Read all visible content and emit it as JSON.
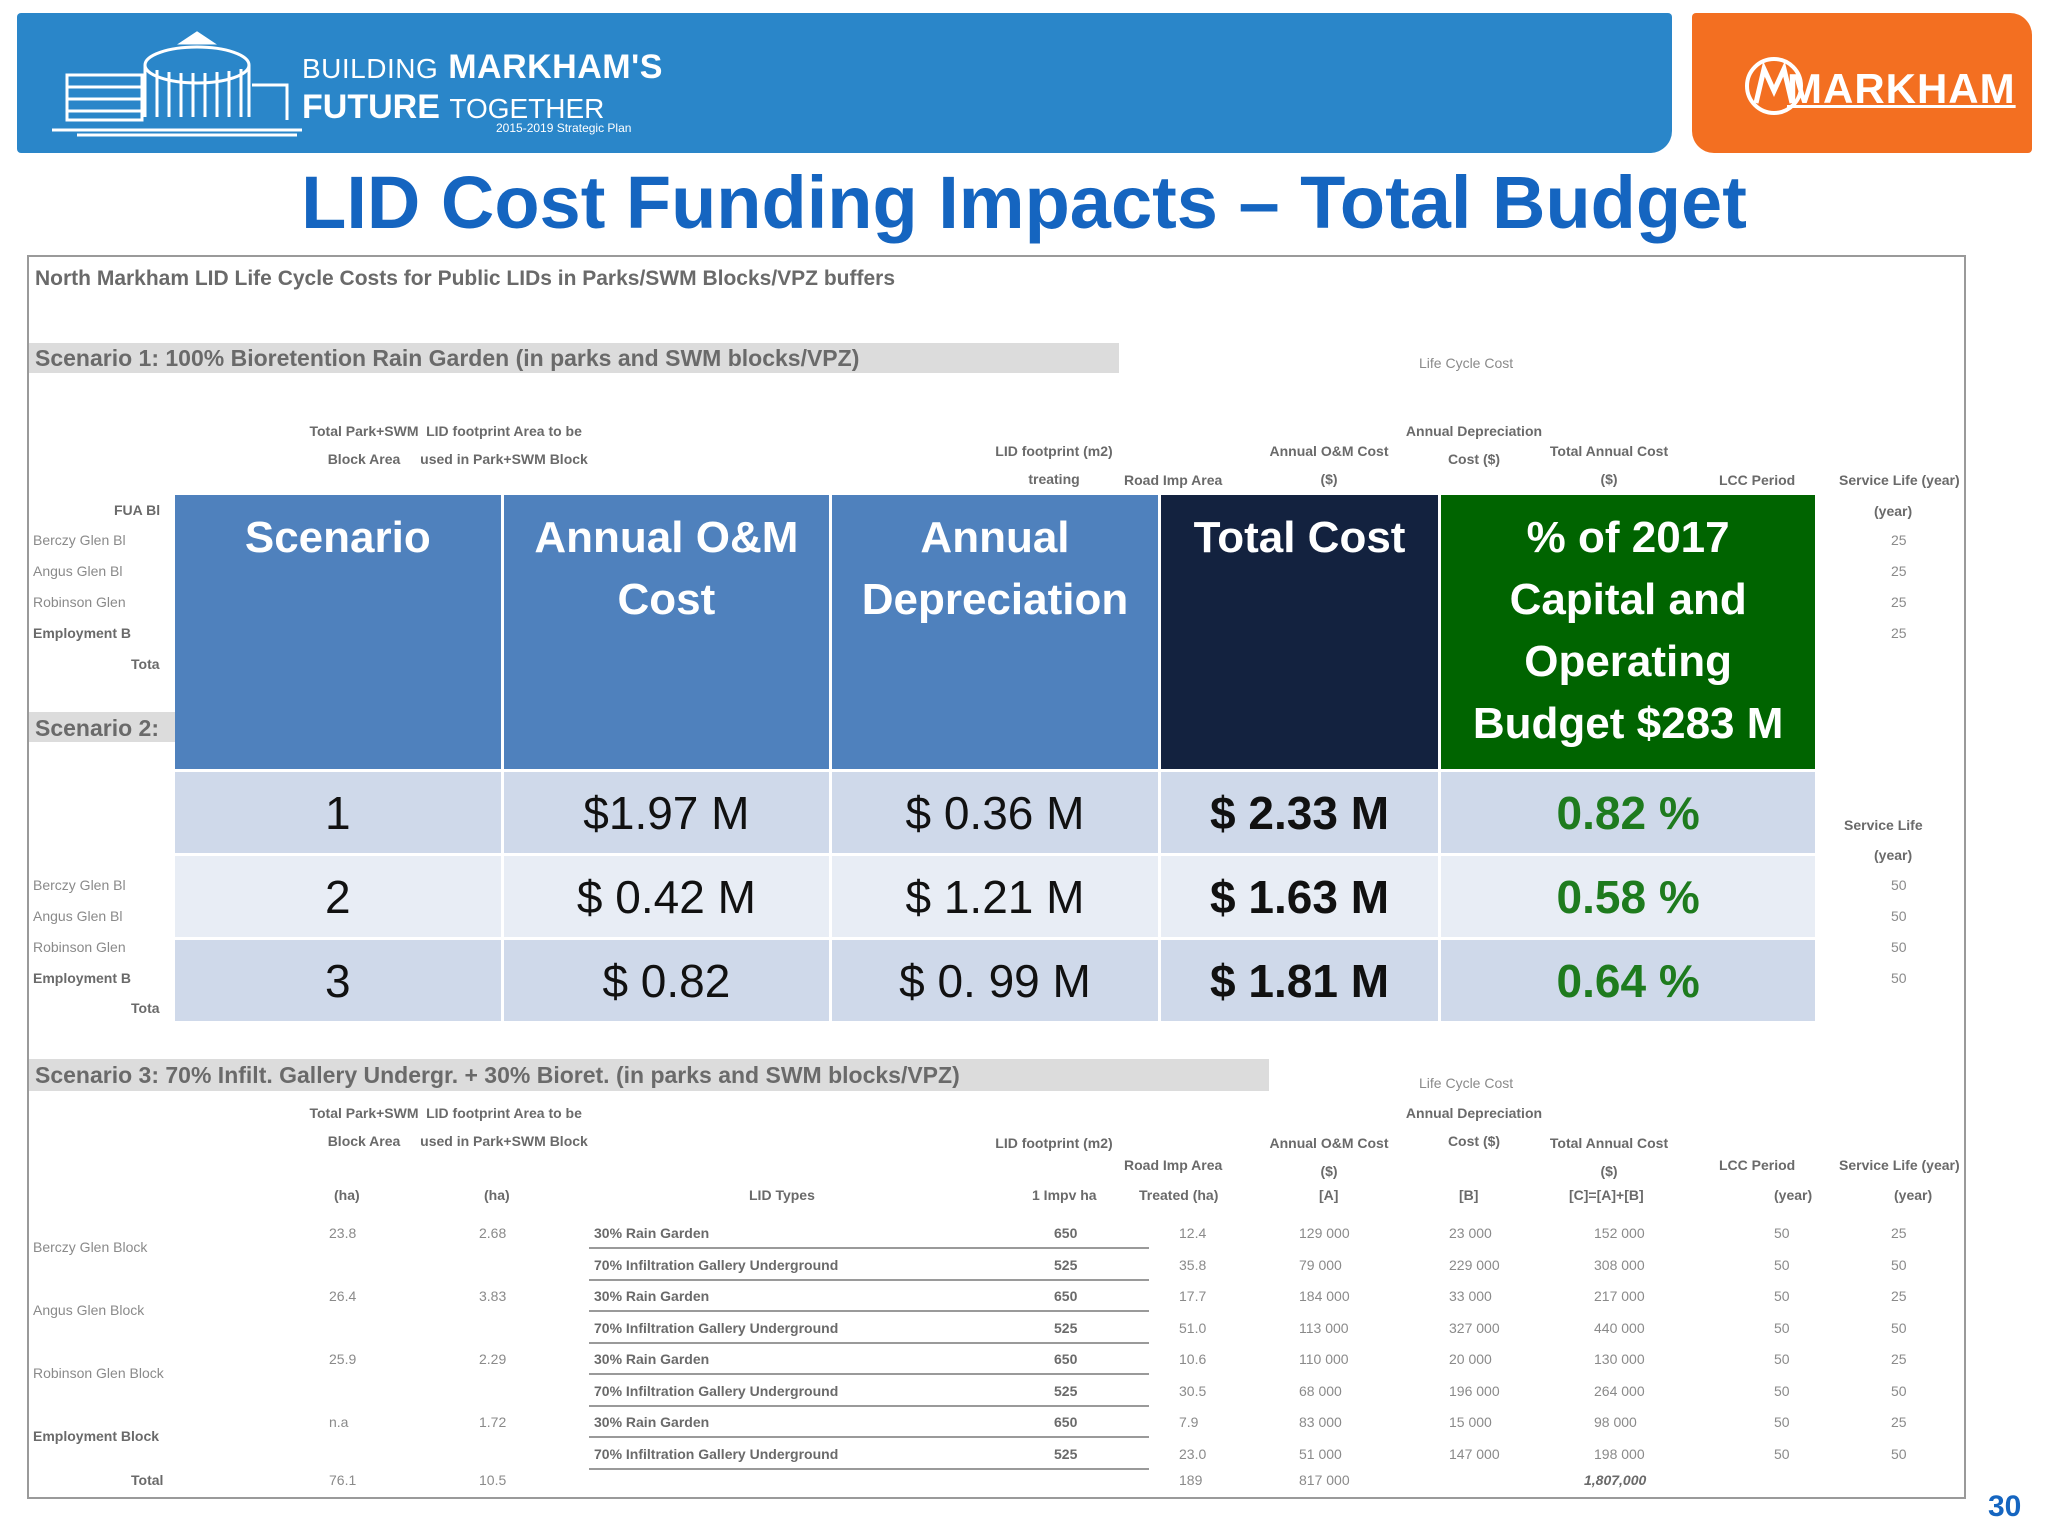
{
  "header": {
    "logo_line1_big": "BUILDING",
    "logo_line1_big2": "MARKHAM'S",
    "logo_line2_big": "FUTURE",
    "logo_line2_small": "TOGETHER",
    "logo_line3": "2015-2019 Strategic Plan",
    "brand": "MARKHAM"
  },
  "title": "LID Cost Funding Impacts – Total Budget",
  "background_sheet": {
    "caption": "North Markham LID Life Cycle Costs for Public LIDs in Parks/SWM Blocks/VPZ buffers",
    "scenario1": "Scenario 1: 100% Bioretention Rain Garden (in parks and SWM blocks/VPZ)",
    "scenario2": "Scenario 2:",
    "scenario3": "Scenario 3: 70% Infilt. Gallery Undergr. + 30% Bioret. (in parks and SWM blocks/VPZ)",
    "life_cycle_cost": "Life Cycle Cost",
    "col_total_park": "Total Park+SWM Block Area",
    "col_footprint": "LID footprint Area to be used in Park+SWM Block",
    "col_lid_footprint": "LID footprint (m2) treating",
    "col_road": "Road Imp Area",
    "col_annual_om": "Annual O&M Cost ($)",
    "col_annual_dep": "Annual Depreciation Cost ($)",
    "col_total_annual": "Total Annual Cost ($)",
    "col_lcc": "LCC Period",
    "col_service": "Service Life (year)",
    "fua": "FUA Bl",
    "blocks_trunc": [
      "Berczy Glen Bl",
      "Angus Glen Bl",
      "Robinson Glen",
      "Employment B",
      "Tota"
    ],
    "blocks_trunc2": [
      "Berczy Glen Bl",
      "Angus Glen Bl",
      "Robinson Glen",
      "Employment B",
      "Tota"
    ],
    "service_vals_1": [
      "(year)",
      "25",
      "25",
      "25",
      "25"
    ],
    "service_vals_2": [
      "Service Life",
      "(year)",
      "50",
      "50",
      "50",
      "50"
    ],
    "s3_units": [
      "(ha)",
      "(ha)",
      "LID Types",
      "1 Impv ha",
      "Treated (ha)",
      "[A]",
      "[B]",
      "[C]=[A]+[B]",
      "(year)",
      "(year)"
    ],
    "s3_rows": [
      {
        "block": "Berczy Glen Block",
        "area": "23.8",
        "fp": "2.68",
        "type": "30% Rain Garden",
        "lid": "650",
        "road": "12.4",
        "om": "129 000",
        "dep": "23 000",
        "tot": "152 000",
        "lcc": "50",
        "sl": "25"
      },
      {
        "block": "",
        "area": "",
        "fp": "",
        "type": "70% Infiltration Gallery Underground",
        "lid": "525",
        "road": "35.8",
        "om": "79 000",
        "dep": "229 000",
        "tot": "308 000",
        "lcc": "50",
        "sl": "50"
      },
      {
        "block": "Angus Glen Block",
        "area": "26.4",
        "fp": "3.83",
        "type": "30% Rain Garden",
        "lid": "650",
        "road": "17.7",
        "om": "184 000",
        "dep": "33 000",
        "tot": "217 000",
        "lcc": "50",
        "sl": "25"
      },
      {
        "block": "",
        "area": "",
        "fp": "",
        "type": "70% Infiltration Gallery Underground",
        "lid": "525",
        "road": "51.0",
        "om": "113 000",
        "dep": "327 000",
        "tot": "440 000",
        "lcc": "50",
        "sl": "50"
      },
      {
        "block": "Robinson Glen Block",
        "area": "25.9",
        "fp": "2.29",
        "type": "30% Rain Garden",
        "lid": "650",
        "road": "10.6",
        "om": "110 000",
        "dep": "20 000",
        "tot": "130 000",
        "lcc": "50",
        "sl": "25"
      },
      {
        "block": "",
        "area": "",
        "fp": "",
        "type": "70% Infiltration Gallery Underground",
        "lid": "525",
        "road": "30.5",
        "om": "68 000",
        "dep": "196 000",
        "tot": "264 000",
        "lcc": "50",
        "sl": "50"
      },
      {
        "block": "Employment Block",
        "area": "n.a",
        "fp": "1.72",
        "type": "30% Rain Garden",
        "lid": "650",
        "road": "7.9",
        "om": "83 000",
        "dep": "15 000",
        "tot": "98 000",
        "lcc": "50",
        "sl": "25"
      },
      {
        "block": "",
        "area": "",
        "fp": "",
        "type": "70% Infiltration Gallery Underground",
        "lid": "525",
        "road": "23.0",
        "om": "51 000",
        "dep": "147 000",
        "tot": "198 000",
        "lcc": "50",
        "sl": "50"
      }
    ],
    "s3_total": {
      "label": "Total",
      "area": "76.1",
      "fp": "10.5",
      "road": "189",
      "om": "817 000",
      "tot": "1,807,000"
    }
  },
  "table": {
    "headers": [
      "Scenario",
      "Annual O&M Cost",
      "Annual Depreciation",
      "Total Cost",
      "% of 2017 Capital and Operating Budget $283 M"
    ],
    "rows": [
      [
        "1",
        "$1.97 M",
        "$ 0.36 M",
        "$ 2.33 M",
        "0.82 %"
      ],
      [
        "2",
        "$ 0.42 M",
        "$ 1.21 M",
        "$ 1.63 M",
        "0.58 %"
      ],
      [
        "3",
        "$ 0.82",
        "$ 0. 99 M",
        "$ 1.81 M",
        "0.64 %"
      ]
    ]
  },
  "page_number": "30",
  "colors": {
    "banner_blue": "#2a86c9",
    "banner_orange": "#f36f21",
    "title_blue": "#1565c0",
    "header_blue": "#4f81bd",
    "header_dark": "#13223f",
    "header_green": "#006400",
    "pct_green": "#1e7b1e"
  }
}
